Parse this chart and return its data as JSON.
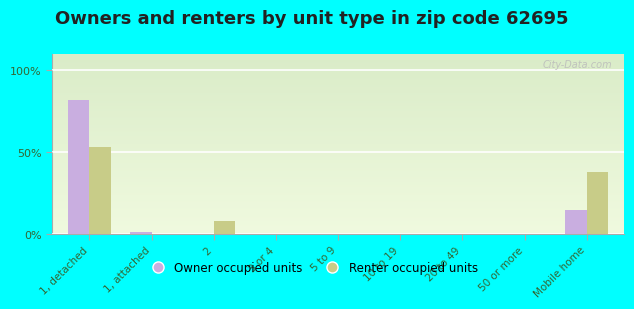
{
  "title": "Owners and renters by unit type in zip code 62695",
  "categories": [
    "1, detached",
    "1, attached",
    "2",
    "3 or 4",
    "5 to 9",
    "10 to 19",
    "20 to 49",
    "50 or more",
    "Mobile home"
  ],
  "owner_values": [
    82,
    1,
    0,
    0,
    0,
    0,
    0,
    0,
    15
  ],
  "renter_values": [
    53,
    0,
    8,
    0,
    0,
    0,
    0,
    0,
    38
  ],
  "owner_color": "#c9aee0",
  "renter_color": "#c8cc88",
  "background_top": "#daecc8",
  "background_bottom": "#f0fadf",
  "outer_bg": "#00ffff",
  "ylabel_ticks": [
    0,
    50,
    100
  ],
  "ylabel_labels": [
    "0%",
    "50%",
    "100%"
  ],
  "ylim": [
    0,
    110
  ],
  "bar_width": 0.35,
  "legend_owner": "Owner occupied units",
  "legend_renter": "Renter occupied units",
  "title_fontsize": 13,
  "watermark": "City-Data.com",
  "tick_label_color": "#336633",
  "title_color": "#222222"
}
